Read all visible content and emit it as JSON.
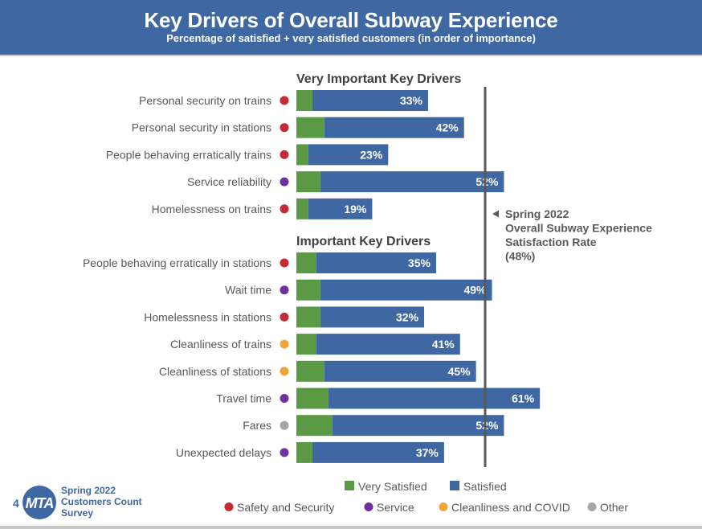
{
  "header": {
    "title": "Key Drivers of Overall Subway Experience",
    "subtitle": "Percentage of satisfied + very satisfied customers (in order of importance)"
  },
  "colors": {
    "header_bg": "#3f68a3",
    "very_satisfied": "#5b9a45",
    "satisfied": "#3f68a3",
    "reference_line": "#595959",
    "categories": {
      "safety": "#c62a33",
      "service": "#7030a0",
      "cleanliness": "#eea63a",
      "other": "#a6a6a6"
    }
  },
  "chart_data": {
    "type": "bar",
    "orientation": "horizontal",
    "stacked": true,
    "title": "Key Drivers of Overall Subway Experience",
    "subtitle": "Percentage of satisfied + very satisfied customers (in order of importance)",
    "xlim": [
      0,
      100
    ],
    "grid": false,
    "groups": [
      {
        "title": "Very Important Key Drivers",
        "items": [
          {
            "label": "Personal security on trains",
            "category": "safety",
            "very_satisfied": 4,
            "total": 33,
            "total_label": "33%"
          },
          {
            "label": "Personal security in stations",
            "category": "safety",
            "very_satisfied": 7,
            "total": 42,
            "total_label": "42%"
          },
          {
            "label": "People behaving erratically trains",
            "category": "safety",
            "very_satisfied": 3,
            "total": 23,
            "total_label": "23%"
          },
          {
            "label": "Service reliability",
            "category": "service",
            "very_satisfied": 6,
            "total": 52,
            "total_label": "52%"
          },
          {
            "label": "Homelessness on trains",
            "category": "safety",
            "very_satisfied": 3,
            "total": 19,
            "total_label": "19%"
          }
        ]
      },
      {
        "title": "Important Key Drivers",
        "items": [
          {
            "label": "People behaving erratically in stations",
            "category": "safety",
            "very_satisfied": 5,
            "total": 35,
            "total_label": "35%"
          },
          {
            "label": "Wait time",
            "category": "service",
            "very_satisfied": 6,
            "total": 49,
            "total_label": "49%"
          },
          {
            "label": "Homelessness in stations",
            "category": "safety",
            "very_satisfied": 6,
            "total": 32,
            "total_label": "32%"
          },
          {
            "label": "Cleanliness of trains",
            "category": "cleanliness",
            "very_satisfied": 5,
            "total": 41,
            "total_label": "41%"
          },
          {
            "label": "Cleanliness of stations",
            "category": "cleanliness",
            "very_satisfied": 7,
            "total": 45,
            "total_label": "45%"
          },
          {
            "label": "Travel time",
            "category": "service",
            "very_satisfied": 8,
            "total": 61,
            "total_label": "61%"
          },
          {
            "label": "Fares",
            "category": "other",
            "very_satisfied": 9,
            "total": 52,
            "total_label": "52%"
          },
          {
            "label": "Unexpected delays",
            "category": "service",
            "very_satisfied": 4,
            "total": 37,
            "total_label": "37%"
          }
        ]
      }
    ],
    "reference_line": {
      "value": 48,
      "annotation": [
        "Spring 2022",
        "Overall Subway Experience",
        "Satisfaction Rate",
        "(48%)"
      ]
    },
    "legend": {
      "placement": "bottom",
      "series": [
        {
          "name": "Very Satisfied",
          "color_key": "very_satisfied"
        },
        {
          "name": "Satisfied",
          "color_key": "satisfied"
        }
      ],
      "categories": [
        {
          "key": "safety",
          "name": "Safety and Security"
        },
        {
          "key": "service",
          "name": "Service"
        },
        {
          "key": "cleanliness",
          "name": "Cleanliness and COVID"
        },
        {
          "key": "other",
          "name": "Other"
        }
      ]
    }
  },
  "footer": {
    "page_number": "4",
    "logo_text": "MTA",
    "survey_lines": [
      "Spring 2022",
      "Customers Count",
      "Survey"
    ]
  }
}
